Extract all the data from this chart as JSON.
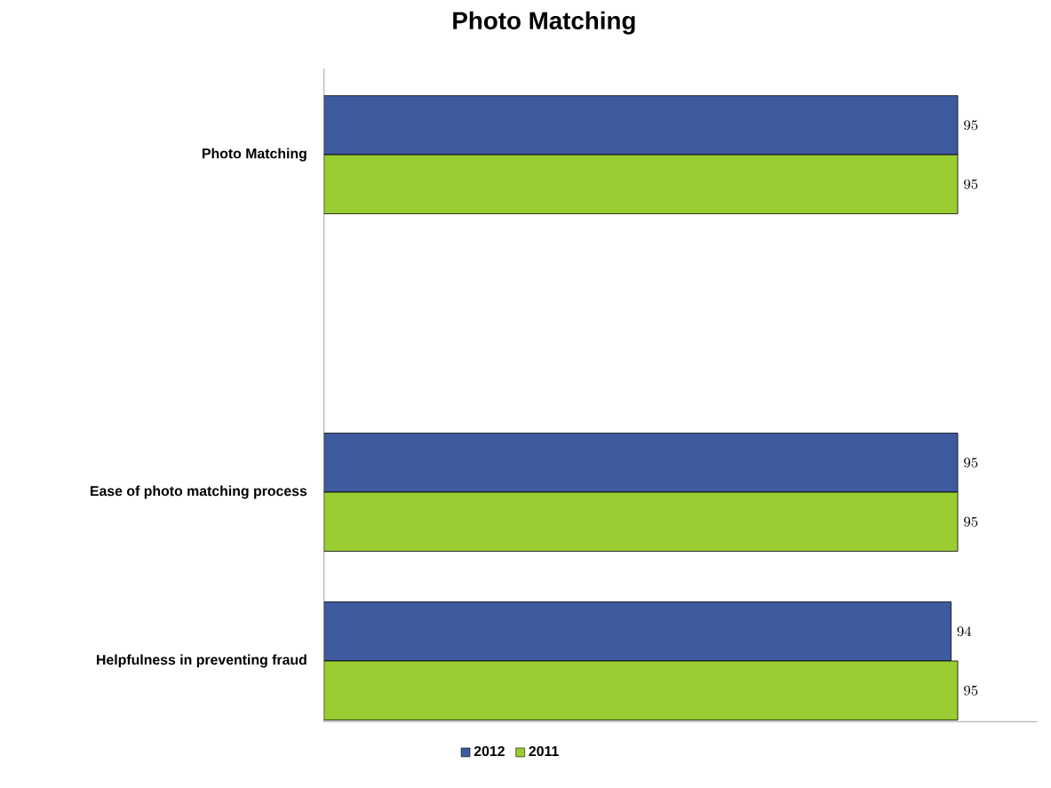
{
  "chart_data": {
    "type": "bar",
    "orientation": "horizontal",
    "title": "Photo Matching",
    "categories": [
      "Photo Matching",
      null,
      "Ease of photo matching process",
      "Helpfulness in preventing fraud"
    ],
    "series": [
      {
        "name": "2012",
        "color": "#3f5ba0",
        "values": [
          95,
          null,
          95,
          94
        ]
      },
      {
        "name": "2011",
        "color": "#9acd32",
        "values": [
          95,
          null,
          95,
          95
        ]
      }
    ],
    "xlim": [
      0,
      107
    ],
    "data_labels": true,
    "legend": "bottom",
    "tick_labels": "y"
  }
}
